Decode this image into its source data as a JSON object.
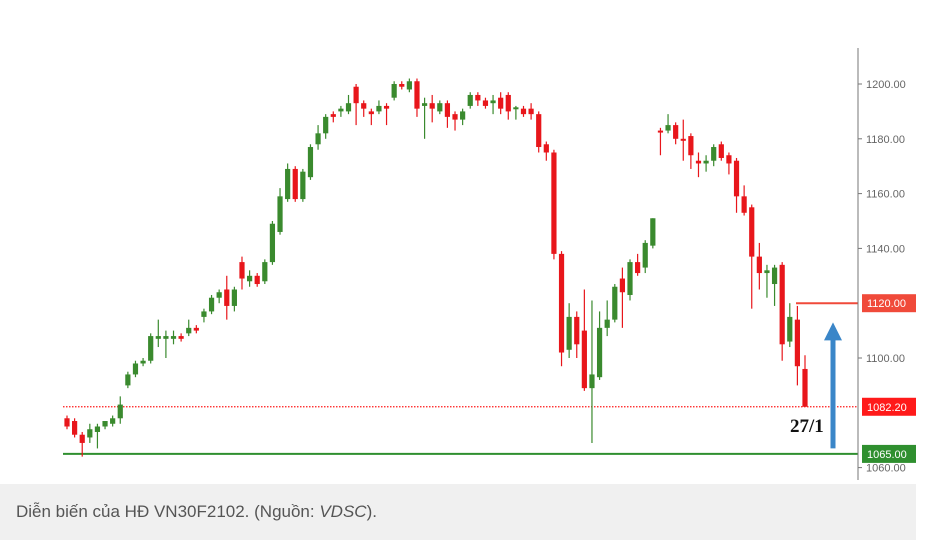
{
  "chart_data": {
    "type": "candlestick",
    "title": "",
    "xlabel": "",
    "ylabel": "",
    "ylim": [
      1055,
      1212
    ],
    "yticks": [
      "1060.00",
      "1080.00",
      "1100.00",
      "1120.00",
      "1140.00",
      "1160.00",
      "1180.00",
      "1200.00"
    ],
    "yticks_shown": [
      "1200.00",
      "1180.00",
      "1160.00",
      "1140.00",
      "1100.00",
      "1060.00"
    ],
    "grid": false,
    "colors": {
      "up": "#3a8a2e",
      "down": "#e8161b",
      "resistance": "#f04a3a",
      "last": "#ff1a1a",
      "support": "#2f8f2f",
      "arrow": "#3a86c8"
    },
    "ohlc_fields": [
      "open",
      "high",
      "low",
      "close"
    ],
    "ohlc": [
      [
        1078,
        1079,
        1074,
        1075
      ],
      [
        1077,
        1078,
        1071,
        1072
      ],
      [
        1072,
        1073,
        1064,
        1069
      ],
      [
        1071,
        1076,
        1069,
        1074
      ],
      [
        1073,
        1076,
        1067,
        1075
      ],
      [
        1075,
        1077,
        1074,
        1077
      ],
      [
        1076,
        1079,
        1075,
        1078
      ],
      [
        1078,
        1086,
        1076,
        1083
      ],
      [
        1090,
        1095,
        1089,
        1094
      ],
      [
        1094,
        1099,
        1093,
        1098
      ],
      [
        1098,
        1100,
        1097,
        1099
      ],
      [
        1099,
        1109,
        1098,
        1108
      ],
      [
        1107,
        1114,
        1104,
        1108
      ],
      [
        1107,
        1110,
        1100,
        1108
      ],
      [
        1107,
        1110,
        1105,
        1108
      ],
      [
        1108,
        1109,
        1106,
        1107
      ],
      [
        1109,
        1114,
        1108,
        1111
      ],
      [
        1111,
        1112,
        1109,
        1110
      ],
      [
        1115,
        1118,
        1113,
        1117
      ],
      [
        1117,
        1123,
        1116,
        1122
      ],
      [
        1122,
        1125,
        1120,
        1124
      ],
      [
        1125,
        1130,
        1114,
        1119
      ],
      [
        1119,
        1126,
        1117,
        1125
      ],
      [
        1135,
        1137,
        1125,
        1129
      ],
      [
        1128,
        1132,
        1126,
        1130
      ],
      [
        1130,
        1131,
        1126,
        1127
      ],
      [
        1128,
        1136,
        1127,
        1135
      ],
      [
        1135,
        1150,
        1134,
        1149
      ],
      [
        1146,
        1162,
        1145,
        1159
      ],
      [
        1158,
        1171,
        1157,
        1169
      ],
      [
        1169,
        1170,
        1157,
        1158
      ],
      [
        1158,
        1169,
        1157,
        1168
      ],
      [
        1166,
        1178,
        1165,
        1177
      ],
      [
        1178,
        1185,
        1176,
        1182
      ],
      [
        1182,
        1189,
        1180,
        1188
      ],
      [
        1189,
        1190,
        1186,
        1188
      ],
      [
        1190,
        1192,
        1188,
        1191
      ],
      [
        1190,
        1196,
        1189,
        1193
      ],
      [
        1199,
        1200,
        1185,
        1193
      ],
      [
        1193,
        1194,
        1188,
        1191
      ],
      [
        1190,
        1191,
        1185,
        1189
      ],
      [
        1190,
        1194,
        1189,
        1192
      ],
      [
        1192,
        1193,
        1185,
        1191
      ],
      [
        1195,
        1201,
        1194,
        1200
      ],
      [
        1200,
        1201,
        1198,
        1199
      ],
      [
        1198,
        1202,
        1197,
        1201
      ],
      [
        1201,
        1202,
        1188,
        1191
      ],
      [
        1192,
        1195,
        1180,
        1193
      ],
      [
        1193,
        1196,
        1186,
        1191
      ],
      [
        1190,
        1194,
        1189,
        1193
      ],
      [
        1193,
        1194,
        1184,
        1188
      ],
      [
        1189,
        1190,
        1183,
        1187
      ],
      [
        1187,
        1191,
        1185,
        1190
      ],
      [
        1192,
        1197,
        1191,
        1196
      ],
      [
        1196,
        1197,
        1192,
        1194
      ],
      [
        1194,
        1195,
        1191,
        1192
      ],
      [
        1193,
        1196,
        1189,
        1194
      ],
      [
        1195,
        1197,
        1189,
        1191
      ],
      [
        1196,
        1197,
        1187,
        1190
      ],
      [
        1191,
        1192,
        1187,
        1191.5
      ],
      [
        1191,
        1192,
        1188,
        1189
      ],
      [
        1191,
        1193,
        1187,
        1189
      ],
      [
        1189,
        1190,
        1175,
        1177
      ],
      [
        1178,
        1179,
        1172,
        1175
      ],
      [
        1175,
        1176,
        1136,
        1138
      ],
      [
        1138,
        1139,
        1097,
        1102
      ],
      [
        1103,
        1120,
        1100,
        1115
      ],
      [
        1115,
        1117,
        1100,
        1105
      ],
      [
        1110,
        1125,
        1088,
        1089
      ],
      [
        1089,
        1121,
        1069,
        1094
      ],
      [
        1093,
        1117,
        1092,
        1111
      ],
      [
        1111,
        1121,
        1108,
        1114
      ],
      [
        1114,
        1127,
        1113,
        1126
      ],
      [
        1129,
        1133,
        1111,
        1124
      ],
      [
        1123,
        1136,
        1121,
        1135
      ],
      [
        1135,
        1138,
        1130,
        1131
      ],
      [
        1133,
        1143,
        1131,
        1142
      ],
      [
        1141,
        1151,
        1140,
        1151
      ],
      [
        1183,
        1184,
        1174,
        1182.5
      ],
      [
        1183,
        1189,
        1182,
        1185
      ],
      [
        1185,
        1186,
        1178,
        1180
      ],
      [
        1180,
        1187,
        1172,
        1179.5
      ],
      [
        1181,
        1182,
        1169,
        1174
      ],
      [
        1172,
        1175,
        1166,
        1171
      ],
      [
        1171,
        1174,
        1168,
        1172
      ],
      [
        1172,
        1178,
        1170,
        1177
      ],
      [
        1178,
        1179,
        1172,
        1173
      ],
      [
        1174,
        1175,
        1167,
        1171
      ],
      [
        1172,
        1173,
        1153,
        1159
      ],
      [
        1159,
        1163,
        1152,
        1153
      ],
      [
        1155,
        1156,
        1118,
        1137
      ],
      [
        1137,
        1142,
        1125,
        1131
      ],
      [
        1131,
        1134,
        1122,
        1132
      ],
      [
        1127,
        1134,
        1119,
        1133
      ],
      [
        1134,
        1135,
        1099,
        1105
      ],
      [
        1106,
        1120,
        1104,
        1115
      ],
      [
        1114,
        1119,
        1090,
        1097
      ],
      [
        1096,
        1101,
        1082.2,
        1082.2
      ]
    ],
    "levels": [
      {
        "value": 1120.0,
        "label": "1120.00",
        "style": "solid",
        "color_key": "resistance",
        "span": "recent"
      },
      {
        "value": 1082.2,
        "label": "1082.20",
        "style": "dotted",
        "color_key": "last",
        "span": "full"
      },
      {
        "value": 1065.0,
        "label": "1065.00",
        "style": "solid",
        "color_key": "support",
        "span": "full"
      }
    ],
    "annotations": [
      {
        "text": "27/1",
        "at_candle": 98
      },
      {
        "type": "arrow-up",
        "from": 1067,
        "to": 1113
      }
    ]
  },
  "caption": {
    "text": "Diễn biến của HĐ VN30F2102. (Nguồn: ",
    "source": "VDSC",
    "suffix": ")."
  }
}
